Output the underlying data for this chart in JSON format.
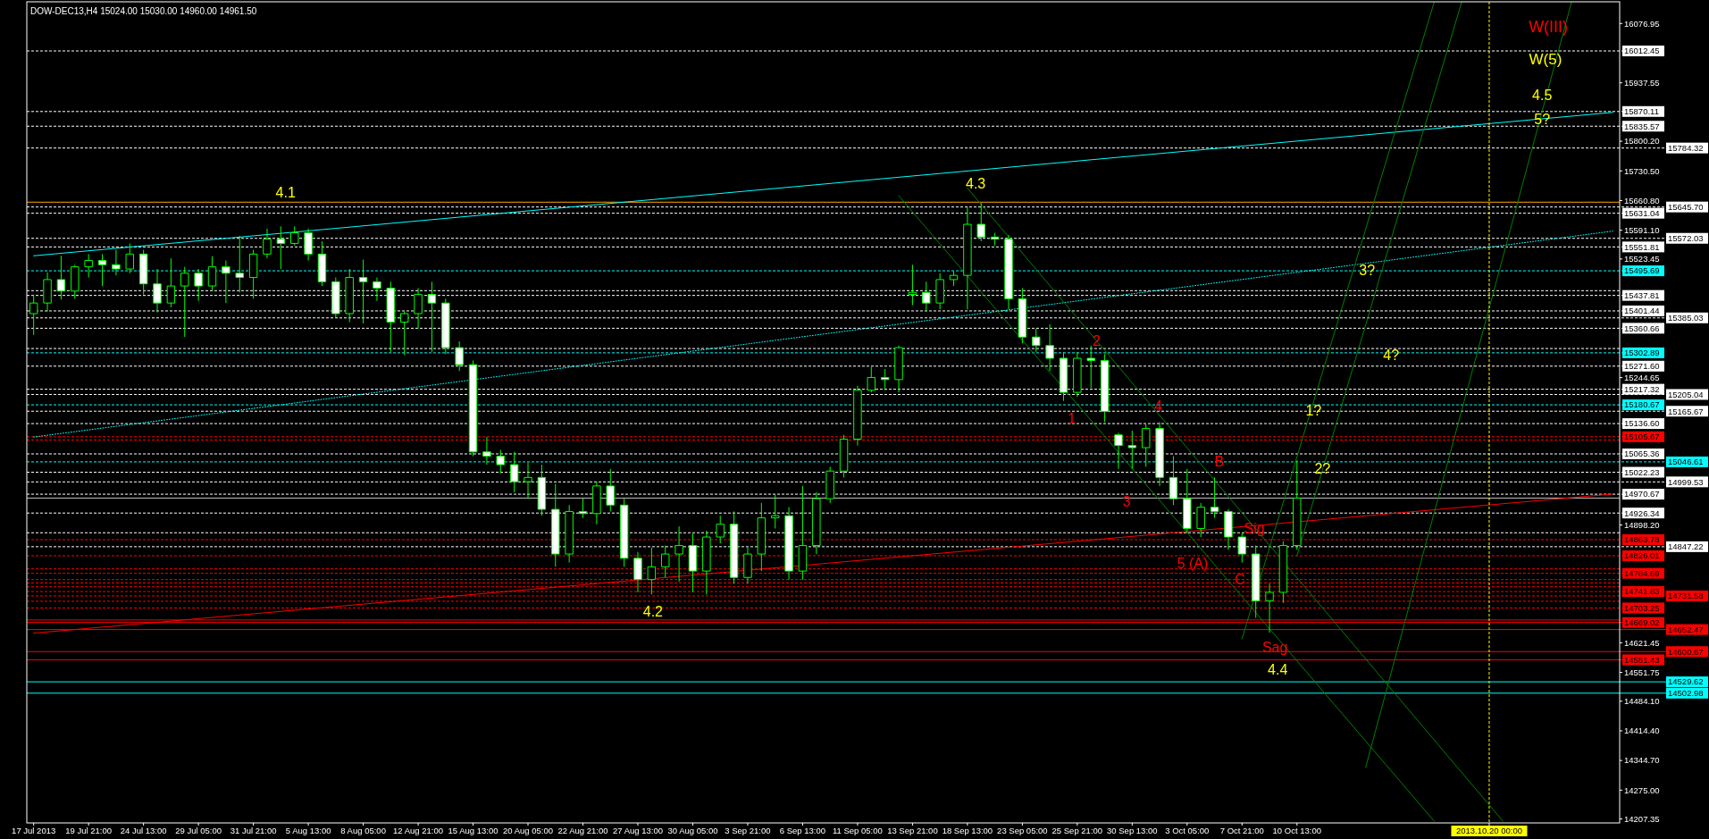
{
  "chart_data": {
    "type": "candlestick",
    "title": "DOW-DEC13,H4 15024.00 15030.00 14960.00 14961.50",
    "color": "#00ff00",
    "categories": [
      "17 Jul 2013",
      null,
      null,
      null,
      "19 Jul 21:00",
      null,
      null,
      null,
      "24 Jul 13:00",
      null,
      null,
      null,
      "29 Jul 05:00",
      null,
      null,
      null,
      "31 Jul 21:00",
      null,
      null,
      null,
      "5 Aug 13:00",
      null,
      null,
      null,
      "8 Aug 05:00",
      null,
      null,
      null,
      "12 Aug 21:00",
      null,
      null,
      null,
      "15 Aug 13:00",
      null,
      null,
      null,
      "20 Aug 05:00",
      null,
      null,
      null,
      "22 Aug 21:00",
      null,
      null,
      null,
      "27 Aug 13:00",
      null,
      null,
      null,
      "30 Aug 05:00",
      null,
      null,
      null,
      "3 Sep 21:00",
      null,
      null,
      null,
      "6 Sep 13:00",
      null,
      null,
      null,
      "11 Sep 05:00",
      null,
      null,
      null,
      "13 Sep 21:00",
      null,
      null,
      null,
      "18 Sep 13:00",
      null,
      null,
      null,
      "23 Sep 05:00",
      null,
      null,
      null,
      "25 Sep 21:00",
      null,
      null,
      null,
      "30 Sep 13:00",
      null,
      null,
      null,
      "3 Oct 05:00",
      null,
      null,
      null,
      "7 Oct 21:00",
      null,
      null,
      null,
      "10 Oct 13:00",
      null,
      null,
      null,
      null,
      null,
      null,
      null,
      null,
      null,
      null,
      null,
      null,
      null,
      "2013.10.20 00:00",
      null,
      null,
      null,
      null,
      null,
      null,
      null,
      null,
      null
    ],
    "ohlc": [
      [
        15395,
        15440,
        15345,
        15420
      ],
      [
        15420,
        15492,
        15400,
        15475
      ],
      [
        15475,
        15531,
        15428,
        15448
      ],
      [
        15448,
        15510,
        15430,
        15505
      ],
      [
        15505,
        15535,
        15480,
        15520
      ],
      [
        15520,
        15535,
        15460,
        15510
      ],
      [
        15510,
        15545,
        15485,
        15500
      ],
      [
        15500,
        15560,
        15490,
        15535
      ],
      [
        15535,
        15545,
        15440,
        15465
      ],
      [
        15465,
        15500,
        15398,
        15420
      ],
      [
        15420,
        15525,
        15410,
        15460
      ],
      [
        15460,
        15505,
        15340,
        15490
      ],
      [
        15490,
        15500,
        15425,
        15460
      ],
      [
        15460,
        15530,
        15450,
        15505
      ],
      [
        15505,
        15520,
        15420,
        15490
      ],
      [
        15490,
        15578,
        15445,
        15480
      ],
      [
        15480,
        15545,
        15430,
        15535
      ],
      [
        15535,
        15595,
        15525,
        15570
      ],
      [
        15570,
        15600,
        15500,
        15560
      ],
      [
        15560,
        15600,
        15555,
        15585
      ],
      [
        15585,
        15595,
        15520,
        15535
      ],
      [
        15535,
        15565,
        15460,
        15470
      ],
      [
        15470,
        15480,
        15385,
        15395
      ],
      [
        15395,
        15500,
        15375,
        15480
      ],
      [
        15480,
        15522,
        15372,
        15470
      ],
      [
        15470,
        15480,
        15425,
        15455
      ],
      [
        15455,
        15470,
        15305,
        15375
      ],
      [
        15375,
        15400,
        15298,
        15395
      ],
      [
        15395,
        15455,
        15360,
        15440
      ],
      [
        15440,
        15470,
        15305,
        15420
      ],
      [
        15420,
        15430,
        15300,
        15315
      ],
      [
        15315,
        15330,
        15260,
        15275
      ],
      [
        15275,
        15285,
        15060,
        15070
      ],
      [
        15070,
        15105,
        15040,
        15060
      ],
      [
        15060,
        15075,
        15020,
        15040
      ],
      [
        15040,
        15070,
        14975,
        15000
      ],
      [
        15000,
        15045,
        14960,
        15010
      ],
      [
        15010,
        15040,
        14920,
        14935
      ],
      [
        14935,
        14995,
        14800,
        14830
      ],
      [
        14830,
        14945,
        14810,
        14930
      ],
      [
        14930,
        14960,
        14915,
        14925
      ],
      [
        14925,
        15000,
        14900,
        14990
      ],
      [
        14990,
        15030,
        14930,
        14945
      ],
      [
        14945,
        14960,
        14800,
        14820
      ],
      [
        14820,
        14835,
        14740,
        14770
      ],
      [
        14770,
        14845,
        14735,
        14800
      ],
      [
        14800,
        14850,
        14775,
        14830
      ],
      [
        14830,
        14895,
        14765,
        14850
      ],
      [
        14850,
        14880,
        14740,
        14790
      ],
      [
        14790,
        14885,
        14735,
        14870
      ],
      [
        14870,
        14920,
        14855,
        14900
      ],
      [
        14900,
        14930,
        14760,
        14775
      ],
      [
        14775,
        14845,
        14760,
        14830
      ],
      [
        14830,
        14950,
        14790,
        14915
      ],
      [
        14915,
        14970,
        14890,
        14920
      ],
      [
        14920,
        14940,
        14770,
        14790
      ],
      [
        14790,
        14990,
        14770,
        14850
      ],
      [
        14850,
        14975,
        14830,
        14960
      ],
      [
        14960,
        15035,
        14950,
        15025
      ],
      [
        15025,
        15110,
        15010,
        15100
      ],
      [
        15100,
        15225,
        15085,
        15215
      ],
      [
        15215,
        15270,
        15210,
        15245
      ],
      [
        15245,
        15265,
        15215,
        15240
      ],
      [
        15240,
        15320,
        15210,
        15315
      ],
      [
        15440,
        15510,
        15415,
        15445
      ],
      [
        15445,
        15470,
        15400,
        15420
      ],
      [
        15420,
        15490,
        15405,
        15475
      ],
      [
        15475,
        15495,
        15460,
        15485
      ],
      [
        15485,
        15645,
        15405,
        15605
      ],
      [
        15605,
        15655,
        15565,
        15575
      ],
      [
        15575,
        15585,
        15555,
        15570
      ],
      [
        15570,
        15580,
        15405,
        15430
      ],
      [
        15430,
        15455,
        15325,
        15340
      ],
      [
        15340,
        15360,
        15305,
        15320
      ],
      [
        15320,
        15370,
        15260,
        15290
      ],
      [
        15290,
        15305,
        15190,
        15210
      ],
      [
        15210,
        15305,
        15200,
        15290
      ],
      [
        15290,
        15320,
        15220,
        15285
      ],
      [
        15285,
        15300,
        15140,
        15165
      ],
      [
        15110,
        15115,
        15030,
        15085
      ],
      [
        15085,
        15120,
        15030,
        15080
      ],
      [
        15080,
        15135,
        15035,
        15125
      ],
      [
        15125,
        15140,
        14990,
        15010
      ],
      [
        15010,
        15060,
        14945,
        14960
      ],
      [
        14960,
        15030,
        14880,
        14890
      ],
      [
        14890,
        14950,
        14870,
        14940
      ],
      [
        14940,
        15010,
        14915,
        14930
      ],
      [
        14930,
        14935,
        14840,
        14870
      ],
      [
        14870,
        14880,
        14810,
        14830
      ],
      [
        14830,
        14850,
        14680,
        14720
      ],
      [
        14720,
        14760,
        14645,
        14740
      ],
      [
        14740,
        14860,
        14715,
        14850
      ],
      [
        14850,
        15050,
        14840,
        14961.5
      ],
      null,
      null,
      null,
      null,
      null,
      null,
      null,
      null,
      null,
      null,
      null,
      null,
      null,
      null,
      null,
      null,
      null,
      null,
      null,
      null,
      null,
      null,
      null
    ],
    "series": [
      {
        "type": "line",
        "color": "#00ffff",
        "line_style": "solid",
        "values": [
          15531,
          null,
          null,
          null,
          null,
          null,
          null,
          null,
          null,
          null,
          null,
          null,
          null,
          null,
          null,
          null,
          null,
          null,
          null,
          null,
          null,
          null,
          null,
          null,
          null,
          null,
          null,
          null,
          null,
          null,
          null,
          null,
          null,
          null,
          null,
          null,
          null,
          null,
          null,
          null,
          null,
          null,
          null,
          null,
          null,
          null,
          null,
          null,
          null,
          null,
          null,
          null,
          null,
          null,
          null,
          null,
          null,
          null,
          null,
          null,
          null,
          null,
          null,
          null,
          null,
          null,
          null,
          null,
          null,
          null,
          null,
          null,
          null,
          null,
          null,
          null,
          null,
          null,
          null,
          null,
          null,
          null,
          null,
          null,
          null,
          null,
          null,
          null,
          null,
          null,
          null,
          null,
          null,
          null,
          null,
          null,
          null,
          null,
          null,
          null,
          null,
          null,
          null,
          null,
          null,
          null,
          null,
          null,
          null,
          null,
          null,
          null,
          null,
          null,
          null,
          15868
        ]
      },
      {
        "type": "line",
        "color": "#00ffff",
        "line_style": "dotted",
        "values": [
          15105,
          null,
          null,
          null,
          null,
          null,
          null,
          null,
          null,
          null,
          null,
          null,
          null,
          null,
          null,
          null,
          null,
          null,
          null,
          null,
          null,
          null,
          null,
          null,
          null,
          null,
          null,
          null,
          null,
          null,
          null,
          null,
          null,
          null,
          null,
          null,
          null,
          null,
          null,
          null,
          null,
          null,
          null,
          null,
          null,
          null,
          null,
          null,
          null,
          null,
          null,
          null,
          null,
          null,
          null,
          null,
          null,
          null,
          null,
          null,
          null,
          null,
          null,
          null,
          null,
          null,
          null,
          null,
          null,
          null,
          null,
          null,
          null,
          null,
          null,
          null,
          null,
          null,
          null,
          null,
          null,
          null,
          null,
          null,
          null,
          null,
          null,
          null,
          null,
          null,
          null,
          null,
          null,
          null,
          null,
          null,
          null,
          null,
          null,
          null,
          null,
          null,
          null,
          null,
          null,
          null,
          null,
          null,
          null,
          null,
          null,
          null,
          null,
          null,
          null,
          15589
        ]
      },
      {
        "type": "line",
        "color": "#ff0000",
        "line_style": "solid",
        "values": [
          14644,
          null,
          null,
          null,
          null,
          null,
          null,
          null,
          null,
          null,
          null,
          null,
          null,
          null,
          null,
          null,
          null,
          null,
          null,
          null,
          null,
          null,
          null,
          null,
          null,
          null,
          null,
          null,
          null,
          null,
          null,
          null,
          null,
          null,
          null,
          null,
          null,
          null,
          null,
          null,
          null,
          null,
          null,
          null,
          null,
          null,
          null,
          null,
          null,
          null,
          null,
          null,
          null,
          null,
          null,
          null,
          null,
          null,
          null,
          null,
          null,
          null,
          null,
          null,
          null,
          null,
          null,
          null,
          null,
          null,
          null,
          null,
          null,
          null,
          null,
          null,
          null,
          null,
          null,
          null,
          null,
          null,
          null,
          null,
          null,
          null,
          null,
          null,
          null,
          null,
          null,
          null,
          null,
          null,
          null,
          null,
          null,
          null,
          null,
          null,
          null,
          null,
          null,
          null,
          null,
          null,
          null,
          null,
          null,
          null,
          null,
          null,
          null,
          null,
          null,
          14971
        ]
      },
      {
        "type": "line",
        "color": "#008000",
        "line_style": "solid",
        "values": [
          null,
          null,
          null,
          null,
          null,
          null,
          null,
          null,
          null,
          null,
          null,
          null,
          null,
          null,
          null,
          null,
          null,
          null,
          null,
          null,
          null,
          null,
          null,
          null,
          null,
          null,
          null,
          null,
          null,
          null,
          null,
          null,
          null,
          null,
          null,
          null,
          null,
          null,
          null,
          null,
          null,
          null,
          null,
          null,
          null,
          null,
          null,
          null,
          null,
          null,
          null,
          null,
          null,
          null,
          null,
          null,
          null,
          null,
          null,
          null,
          null,
          null,
          null,
          15672,
          null,
          null,
          null,
          null,
          null,
          null,
          null,
          null,
          null,
          null,
          null,
          null,
          null,
          null,
          null,
          null,
          null,
          null,
          null,
          null,
          null,
          null,
          null,
          null,
          null,
          null,
          null,
          null,
          null,
          null,
          null,
          null,
          null,
          null,
          null,
          null,
          null,
          null,
          14202,
          null,
          null,
          null,
          null,
          null,
          null,
          null,
          null,
          null,
          null,
          null,
          null,
          null
        ]
      },
      {
        "type": "line",
        "color": "#008000",
        "line_style": "solid",
        "values": [
          null,
          null,
          null,
          null,
          null,
          null,
          null,
          null,
          null,
          null,
          null,
          null,
          null,
          null,
          null,
          null,
          null,
          null,
          null,
          null,
          null,
          null,
          null,
          null,
          null,
          null,
          null,
          null,
          null,
          null,
          null,
          null,
          null,
          null,
          null,
          null,
          null,
          null,
          null,
          null,
          null,
          null,
          null,
          null,
          null,
          null,
          null,
          null,
          null,
          null,
          null,
          null,
          null,
          null,
          null,
          null,
          null,
          null,
          null,
          null,
          null,
          null,
          null,
          null,
          null,
          null,
          null,
          null,
          15690,
          null,
          null,
          null,
          null,
          null,
          null,
          null,
          null,
          null,
          null,
          null,
          null,
          null,
          null,
          null,
          null,
          null,
          null,
          null,
          null,
          null,
          null,
          null,
          null,
          null,
          null,
          null,
          null,
          null,
          null,
          null,
          null,
          null,
          null,
          null,
          null,
          null,
          null,
          14202,
          null,
          null,
          null,
          null,
          null,
          null,
          null,
          null
        ]
      },
      {
        "type": "line",
        "color": "#008000",
        "line_style": "solid",
        "values": [
          null,
          null,
          null,
          null,
          null,
          null,
          null,
          null,
          null,
          null,
          null,
          null,
          null,
          null,
          null,
          null,
          null,
          null,
          null,
          null,
          null,
          null,
          null,
          null,
          null,
          null,
          null,
          null,
          null,
          null,
          null,
          null,
          null,
          null,
          null,
          null,
          null,
          null,
          null,
          null,
          null,
          null,
          null,
          null,
          null,
          null,
          null,
          null,
          null,
          null,
          null,
          null,
          null,
          null,
          null,
          null,
          null,
          null,
          null,
          null,
          null,
          null,
          null,
          null,
          null,
          null,
          null,
          null,
          null,
          null,
          null,
          null,
          null,
          null,
          null,
          null,
          null,
          null,
          null,
          null,
          null,
          null,
          null,
          null,
          null,
          null,
          null,
          null,
          14631,
          null,
          null,
          null,
          null,
          null,
          null,
          null,
          null,
          null,
          null,
          null,
          null,
          null,
          16128,
          null,
          null,
          null,
          null,
          null,
          null,
          null,
          null,
          null,
          null,
          null,
          null,
          null
        ]
      },
      {
        "type": "line",
        "color": "#008000",
        "line_style": "solid",
        "values": [
          null,
          null,
          null,
          null,
          null,
          null,
          null,
          null,
          null,
          null,
          null,
          null,
          null,
          null,
          null,
          null,
          null,
          null,
          null,
          null,
          null,
          null,
          null,
          null,
          null,
          null,
          null,
          null,
          null,
          null,
          null,
          null,
          null,
          null,
          null,
          null,
          null,
          null,
          null,
          null,
          null,
          null,
          null,
          null,
          null,
          null,
          null,
          null,
          null,
          null,
          null,
          null,
          null,
          null,
          null,
          null,
          null,
          null,
          null,
          null,
          null,
          null,
          null,
          null,
          null,
          null,
          null,
          null,
          null,
          null,
          null,
          null,
          null,
          null,
          null,
          null,
          null,
          null,
          null,
          null,
          null,
          null,
          null,
          null,
          null,
          null,
          null,
          null,
          null,
          null,
          null,
          null,
          14826,
          null,
          null,
          null,
          null,
          null,
          null,
          null,
          null,
          null,
          null,
          null,
          16128,
          null,
          null,
          null,
          null,
          null,
          null,
          null,
          null,
          null,
          null,
          null
        ]
      },
      {
        "type": "line",
        "color": "#008000",
        "line_style": "solid",
        "values": [
          null,
          null,
          null,
          null,
          null,
          null,
          null,
          null,
          null,
          null,
          null,
          null,
          null,
          null,
          null,
          null,
          null,
          null,
          null,
          null,
          null,
          null,
          null,
          null,
          null,
          null,
          null,
          null,
          null,
          null,
          null,
          null,
          null,
          null,
          null,
          null,
          null,
          null,
          null,
          null,
          null,
          null,
          null,
          null,
          null,
          null,
          null,
          null,
          null,
          null,
          null,
          null,
          null,
          null,
          null,
          null,
          null,
          null,
          null,
          null,
          null,
          null,
          null,
          null,
          null,
          null,
          null,
          null,
          null,
          null,
          null,
          null,
          null,
          null,
          null,
          null,
          null,
          null,
          null,
          null,
          null,
          null,
          null,
          null,
          null,
          null,
          null,
          null,
          null,
          null,
          null,
          null,
          null,
          null,
          null,
          null,
          null,
          14328,
          null,
          null,
          null,
          null,
          null,
          null,
          null,
          null,
          null,
          null,
          null,
          null,
          null,
          null,
          16128,
          null,
          null,
          null
        ]
      }
    ],
    "ylim": [
      14198,
      16128
    ],
    "yticks": [
      16076.95,
      15937.55,
      {
        "value": 15800.2,
        "label": "15800.20"
      },
      {
        "value": 15730.5,
        "label": "15730.50"
      },
      {
        "value": 15660.8,
        "label": "15660.80"
      },
      {
        "value": 15591.1,
        "label": "15591.10"
      },
      15523.45,
      15244.65,
      {
        "value": 14898.2,
        "label": "14898.20"
      },
      14621.45,
      14551.75,
      {
        "value": 14484.1,
        "label": "14484.10"
      },
      {
        "value": 14414.4,
        "label": "14414.40"
      },
      {
        "value": 14344.7,
        "label": "14344.70"
      },
      {
        "value": 14275,
        "label": "14275.00"
      },
      14207.35
    ],
    "ref_lines": [
      {
        "axis": "y",
        "value": 16012.45,
        "label": "16012.45",
        "color": "#ffffff",
        "line_style": "dashed"
      },
      {
        "axis": "y",
        "value": 15870.11,
        "label": "15870.11",
        "color": "#ffffff",
        "line_style": "dashed"
      },
      {
        "axis": "y",
        "value": 15835.57,
        "label": "15835.57",
        "color": "#ffffff",
        "line_style": "dashed"
      },
      {
        "axis": "y",
        "value": 15784.32,
        "label": "15784.32",
        "color": "#ffffff",
        "line_style": "dashed"
      },
      {
        "axis": "y",
        "value": 15657,
        "color": "#ffa500",
        "line_style": "solid"
      },
      {
        "axis": "y",
        "value": 15645.7,
        "label": "15645.70",
        "color": "#ffffff",
        "line_style": "dashed"
      },
      {
        "axis": "y",
        "value": 15631.04,
        "label": "15631.04",
        "color": "#ffffff",
        "line_style": "dashed"
      },
      {
        "axis": "y",
        "value": 15572.03,
        "label": "15572.03",
        "color": "#ffffff",
        "line_style": "dashed"
      },
      {
        "axis": "y",
        "value": 15551.81,
        "label": "15551.81",
        "color": "#ffffff",
        "line_style": "dashed"
      },
      {
        "axis": "y",
        "value": 15495.69,
        "label": "15495.69",
        "color": "#00ffff",
        "line_style": "dashed"
      },
      {
        "axis": "y",
        "value": 15449,
        "color": "#ffffff",
        "line_style": "dashed"
      },
      {
        "axis": "y",
        "value": 15437.81,
        "label": "15437.81",
        "color": "#ffffff",
        "line_style": "dashed"
      },
      {
        "axis": "y",
        "value": 15401.44,
        "label": "15401.44",
        "color": "#ffffff",
        "line_style": "dashed"
      },
      {
        "axis": "y",
        "value": 15385.03,
        "label": "15385.03",
        "color": "#ffffff",
        "line_style": "dashed"
      },
      {
        "axis": "y",
        "value": 15360.66,
        "label": "15360.66",
        "color": "#ffffff",
        "line_style": "dashed"
      },
      {
        "axis": "y",
        "value": 15313,
        "color": "#ffffff",
        "line_style": "dashed"
      },
      {
        "axis": "y",
        "value": 15302.89,
        "label": "15302.89",
        "color": "#00ffff",
        "line_style": "dashed"
      },
      {
        "axis": "y",
        "value": 15271.6,
        "label": "15271.60",
        "color": "#ffffff",
        "line_style": "dashed"
      },
      {
        "axis": "y",
        "value": 15217.32,
        "label": "15217.32",
        "color": "#ffffff",
        "line_style": "dashed"
      },
      {
        "axis": "y",
        "value": 15205.04,
        "label": "15205.04",
        "color": "#ffffff",
        "line_style": "dashed"
      },
      {
        "axis": "y",
        "value": 15180.67,
        "label": "15180.67",
        "color": "#00ffff",
        "line_style": "dashed"
      },
      {
        "axis": "y",
        "value": 15165.67,
        "label": "15165.67",
        "color": "#ffffff",
        "line_style": "dashed"
      },
      {
        "axis": "y",
        "value": 15136.6,
        "label": "15136.60",
        "color": "#ffffff",
        "line_style": "dashed"
      },
      {
        "axis": "y",
        "value": 15105.67,
        "label": "15105.67",
        "color": "#ff0000",
        "line_style": "dashed"
      },
      {
        "axis": "y",
        "value": 15098,
        "color": "#ff0000",
        "line_style": "dashed"
      },
      {
        "axis": "y",
        "value": 15065.36,
        "label": "15065.36",
        "color": "#ffffff",
        "line_style": "dashed"
      },
      {
        "axis": "y",
        "value": 15046.61,
        "label": "15046.61",
        "color": "#00ffff",
        "line_style": "dashed"
      },
      {
        "axis": "y",
        "value": 15022.23,
        "label": "15022.23",
        "color": "#ffffff",
        "line_style": "dashed"
      },
      {
        "axis": "y",
        "value": 14999.53,
        "label": "14999.53",
        "color": "#ffffff",
        "line_style": "dashed"
      },
      {
        "axis": "y",
        "value": 14970.67,
        "label": "14970.67",
        "color": "#ffffff",
        "line_style": "dashed"
      },
      {
        "axis": "y",
        "value": 14961.5,
        "color": "#c0c0c0",
        "line_style": "solid"
      },
      {
        "axis": "y",
        "value": 14926.34,
        "label": "14926.34",
        "color": "#ffffff",
        "line_style": "dashed"
      },
      {
        "axis": "y",
        "value": 14880,
        "color": "#ffffff",
        "line_style": "dashed"
      },
      {
        "axis": "y",
        "value": 14863.78,
        "label": "14863.78",
        "color": "#ff0000",
        "line_style": "dashed"
      },
      {
        "axis": "y",
        "value": 14847.22,
        "label": "14847.22",
        "color": "#ffffff",
        "line_style": "dashed"
      },
      {
        "axis": "y",
        "value": 14826.01,
        "label": "14826.01",
        "color": "#ff0000",
        "line_style": "dashed"
      },
      {
        "axis": "y",
        "value": 14795,
        "color": "#ff0000",
        "line_style": "dashed"
      },
      {
        "axis": "y",
        "value": 14784.69,
        "label": "14784.69",
        "color": "#ff0000",
        "line_style": "dashed"
      },
      {
        "axis": "y",
        "value": 14770,
        "color": "#ff0000",
        "line_style": "dashed"
      },
      {
        "axis": "y",
        "value": 14762,
        "color": "#ff0000",
        "line_style": "dashed"
      },
      {
        "axis": "y",
        "value": 14753,
        "color": "#ff0000",
        "line_style": "dashed"
      },
      {
        "axis": "y",
        "value": 14741.83,
        "label": "14741.83",
        "color": "#ff0000",
        "line_style": "dashed"
      },
      {
        "axis": "y",
        "value": 14731.58,
        "label": "14731.58",
        "color": "#ff0000",
        "line_style": "dashed"
      },
      {
        "axis": "y",
        "value": 14719,
        "color": "#ff0000",
        "line_style": "dashed"
      },
      {
        "axis": "y",
        "value": 14703.25,
        "label": "14703.25",
        "color": "#ff0000",
        "line_style": "dashed"
      },
      {
        "axis": "y",
        "value": 14675,
        "color": "#ff0000",
        "line_style": "solid"
      },
      {
        "axis": "y",
        "value": 14669.02,
        "label": "14669.02",
        "color": "#ff0000",
        "line_style": "solid"
      },
      {
        "axis": "y",
        "value": 14652.47,
        "label": "14652.47",
        "color": "#ff0000",
        "line_style": "solid"
      },
      {
        "axis": "y",
        "value": 14600.67,
        "label": "14600.67",
        "color": "#ff0000",
        "line_style": "solid"
      },
      {
        "axis": "y",
        "value": 14581.43,
        "label": "14581.43",
        "color": "#ff0000",
        "line_style": "solid"
      },
      {
        "axis": "y",
        "value": 14529.62,
        "label": "14529.62",
        "color": "#00ffff",
        "line_style": "solid"
      },
      {
        "axis": "y",
        "value": 14502.98,
        "label": "14502.98",
        "color": "#00ffff",
        "line_style": "solid"
      },
      {
        "axis": "x",
        "value": "2013.10.20 00:00",
        "color": "#ffff00",
        "line_style": "dashed"
      }
    ],
    "annotations": [
      "W(III)",
      "W(5)",
      "4.5",
      "5?",
      "4.1",
      "4.3",
      "3?",
      "2",
      "4?",
      "4",
      "1?",
      "1",
      "B",
      "2?",
      "3",
      "Sig",
      "5 (A)",
      "C",
      "4.2",
      "Sag",
      "4.4"
    ]
  }
}
